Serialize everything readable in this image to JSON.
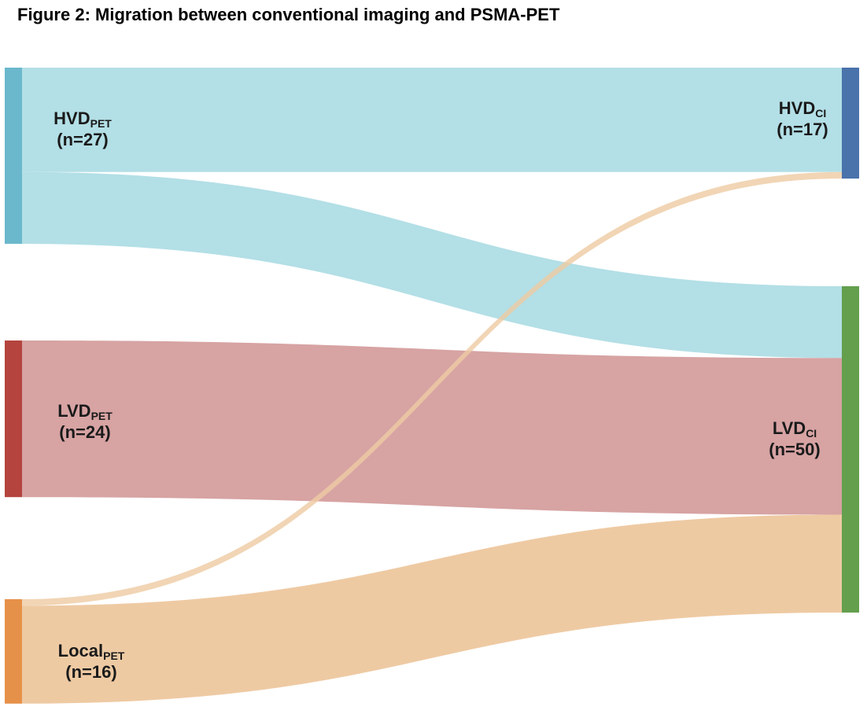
{
  "title": "Figure 2: Migration between conventional imaging and PSMA-PET",
  "chart_data": {
    "type": "sankey",
    "title": "Figure 2: Migration between conventional imaging and PSMA-PET",
    "source_nodes": [
      {
        "id": "HVD_PET",
        "label": "HVD",
        "subscript": "PET",
        "count_text": "(n=27)",
        "value": 27,
        "color": "#6bb8cc"
      },
      {
        "id": "LVD_PET",
        "label": "LVD",
        "subscript": "PET",
        "count_text": "(n=24)",
        "value": 24,
        "color": "#b5443e"
      },
      {
        "id": "Local_PET",
        "label": "Local",
        "subscript": "PET",
        "count_text": "(n=16)",
        "value": 16,
        "color": "#e6914a"
      }
    ],
    "target_nodes": [
      {
        "id": "HVD_CI",
        "label": "HVD",
        "subscript": "CI",
        "count_text": "(n=17)",
        "value": 17,
        "color": "#4a72ab"
      },
      {
        "id": "LVD_CI",
        "label": "LVD",
        "subscript": "CI",
        "count_text": "(n=50)",
        "value": 50,
        "color": "#649f4e"
      }
    ],
    "flows": [
      {
        "from": "HVD_PET",
        "to": "HVD_CI",
        "value": 16,
        "color": "#b3dfe6"
      },
      {
        "from": "HVD_PET",
        "to": "LVD_CI",
        "value": 11,
        "color": "#b3dfe6"
      },
      {
        "from": "LVD_PET",
        "to": "LVD_CI",
        "value": 24,
        "color": "#d7a3a3"
      },
      {
        "from": "Local_PET",
        "to": "HVD_CI",
        "value": 1,
        "color": "#eecaa3"
      },
      {
        "from": "Local_PET",
        "to": "LVD_CI",
        "value": 15,
        "color": "#eecaa3"
      }
    ]
  }
}
